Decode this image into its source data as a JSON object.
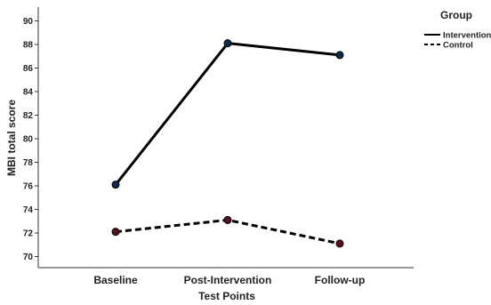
{
  "chart_data": {
    "type": "line",
    "categories": [
      "Baseline",
      "Post-Intervention",
      "Follow-up"
    ],
    "series": [
      {
        "name": "Intervention",
        "values": [
          76.1,
          88.1,
          87.1
        ],
        "line_style": "solid",
        "marker_color": "#0d2a4a"
      },
      {
        "name": "Control",
        "values": [
          72.1,
          73.1,
          71.1
        ],
        "line_style": "dashed",
        "marker_color": "#5a0f1c"
      }
    ],
    "xlabel": "Test Points",
    "ylabel": "MBI total score",
    "ylim": [
      69,
      91
    ],
    "yticks": [
      70,
      72,
      74,
      76,
      78,
      80,
      82,
      84,
      86,
      88,
      90
    ],
    "grid": false,
    "legend": {
      "title": "Group",
      "placement": "top-right"
    },
    "colors": {
      "line": "#000000",
      "axis": "#333333"
    }
  }
}
